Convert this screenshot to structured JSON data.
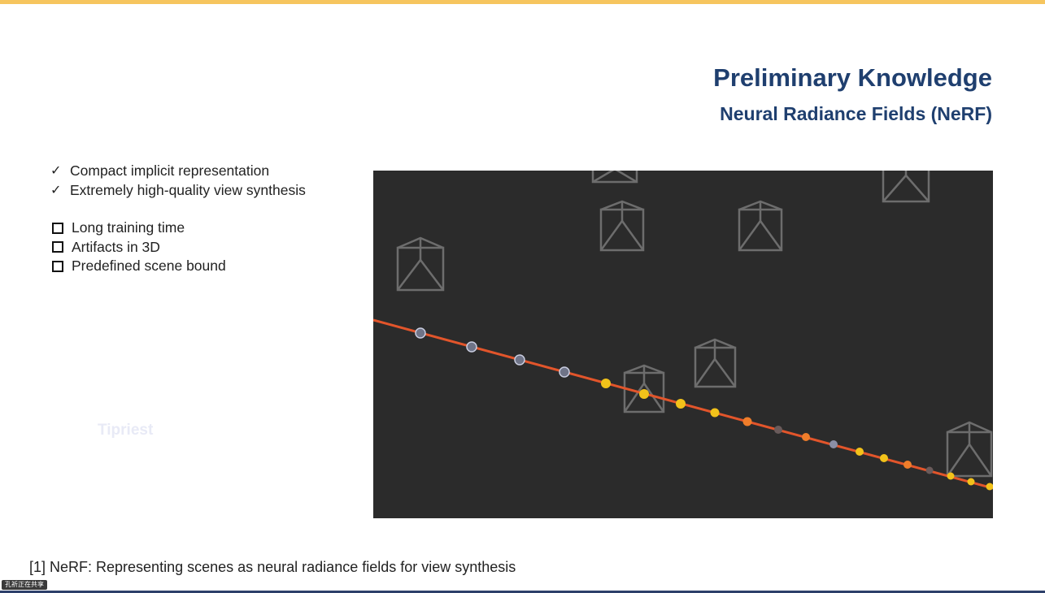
{
  "slide": {
    "title": "Preliminary Knowledge",
    "subtitle": "Neural Radiance Fields (NeRF)",
    "pros": [
      {
        "icon": "check-icon",
        "text": "Compact implicit representation"
      },
      {
        "icon": "check-icon",
        "text": "Extremely high-quality view synthesis"
      }
    ],
    "cons": [
      {
        "icon": "checkbox-icon",
        "text": "Long training time"
      },
      {
        "icon": "checkbox-icon",
        "text": "Artifacts in 3D"
      },
      {
        "icon": "checkbox-icon",
        "text": "Predefined scene bound"
      }
    ],
    "watermark": "Tipriest",
    "reference": "[1] NeRF: Representing scenes as neural radiance fields for view synthesis"
  },
  "footer": {
    "share_status": "孔祈正在共享"
  },
  "colors": {
    "accent_bar": "#f6c55e",
    "title": "#1f3f6f",
    "figure_bg": "#2b2b2b",
    "ray": "#e2552b",
    "sample_yellow": "#f2c21a",
    "sample_orange": "#ef7d2a",
    "sample_gray": "#8a8fa6"
  }
}
